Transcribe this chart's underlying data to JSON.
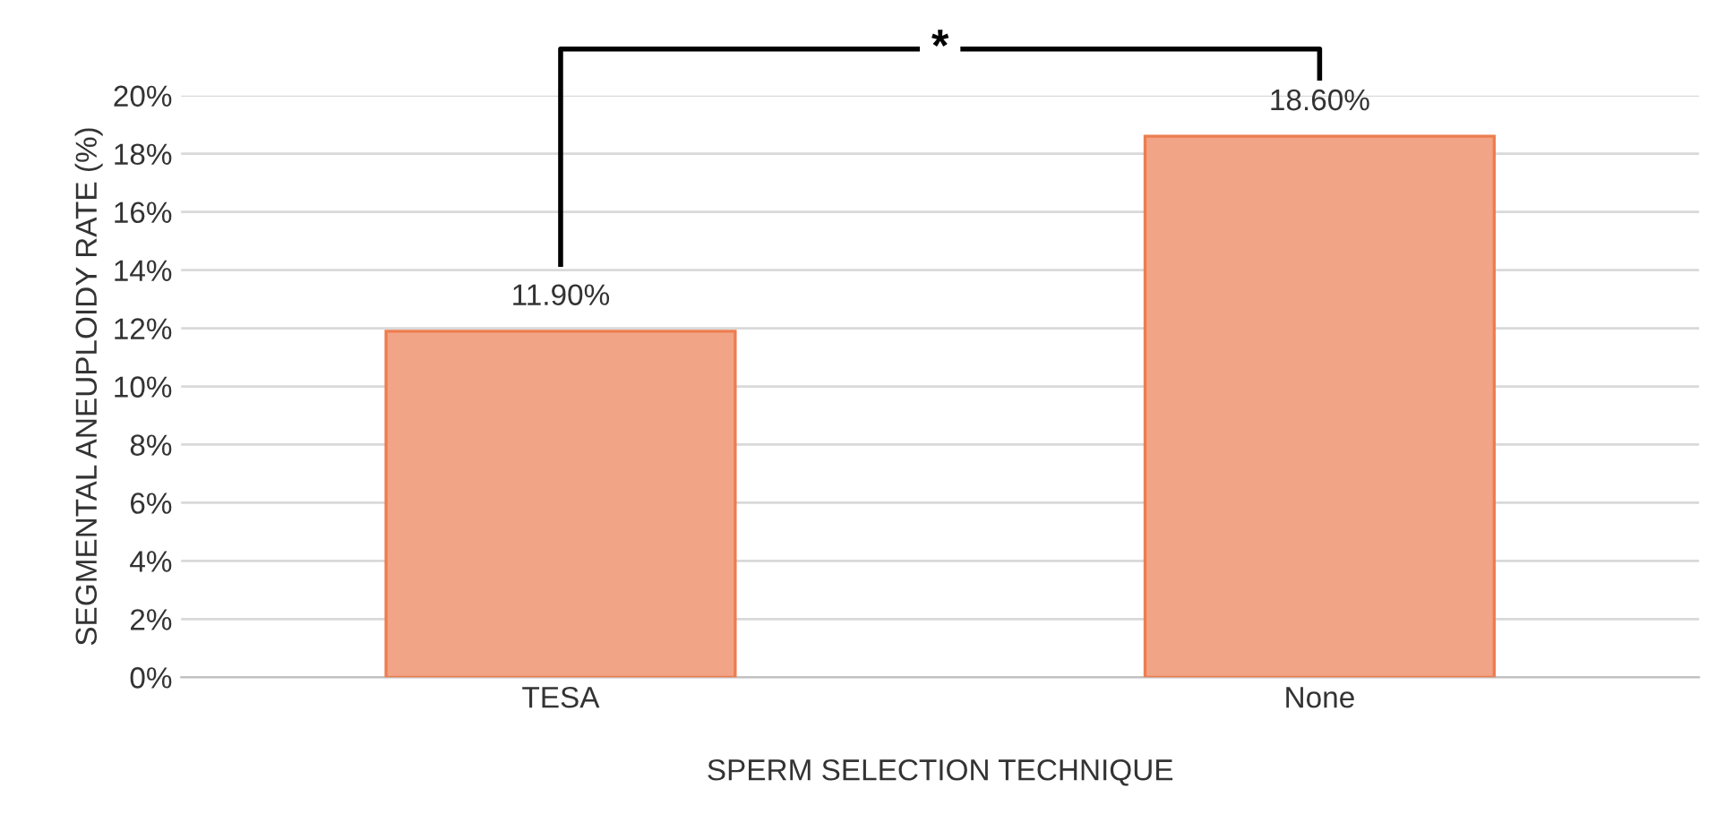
{
  "chart_data": {
    "type": "bar",
    "xlabel": "SPERM SELECTION TECHNIQUE",
    "ylabel": "SEGMENTAL ANEUPLOIDY RATE (%)",
    "categories": [
      "TESA",
      "None"
    ],
    "values": [
      11.9,
      18.6
    ],
    "value_labels": [
      "11.90%",
      "18.60%"
    ],
    "color": "#f2a487",
    "ylim": [
      0,
      20
    ],
    "yticks": [
      {
        "value": 0,
        "label": "0%"
      },
      {
        "value": 2,
        "label": "2%"
      },
      {
        "value": 4,
        "label": "4%"
      },
      {
        "value": 6,
        "label": "6%"
      },
      {
        "value": 8,
        "label": "8%"
      },
      {
        "value": 10,
        "label": "10%"
      },
      {
        "value": 12,
        "label": "12%"
      },
      {
        "value": 14,
        "label": "14%"
      },
      {
        "value": 16,
        "label": "16%"
      },
      {
        "value": 18,
        "label": "18%"
      },
      {
        "value": 20,
        "label": "20%"
      }
    ],
    "grid": "y",
    "annotations": [
      "*"
    ]
  }
}
